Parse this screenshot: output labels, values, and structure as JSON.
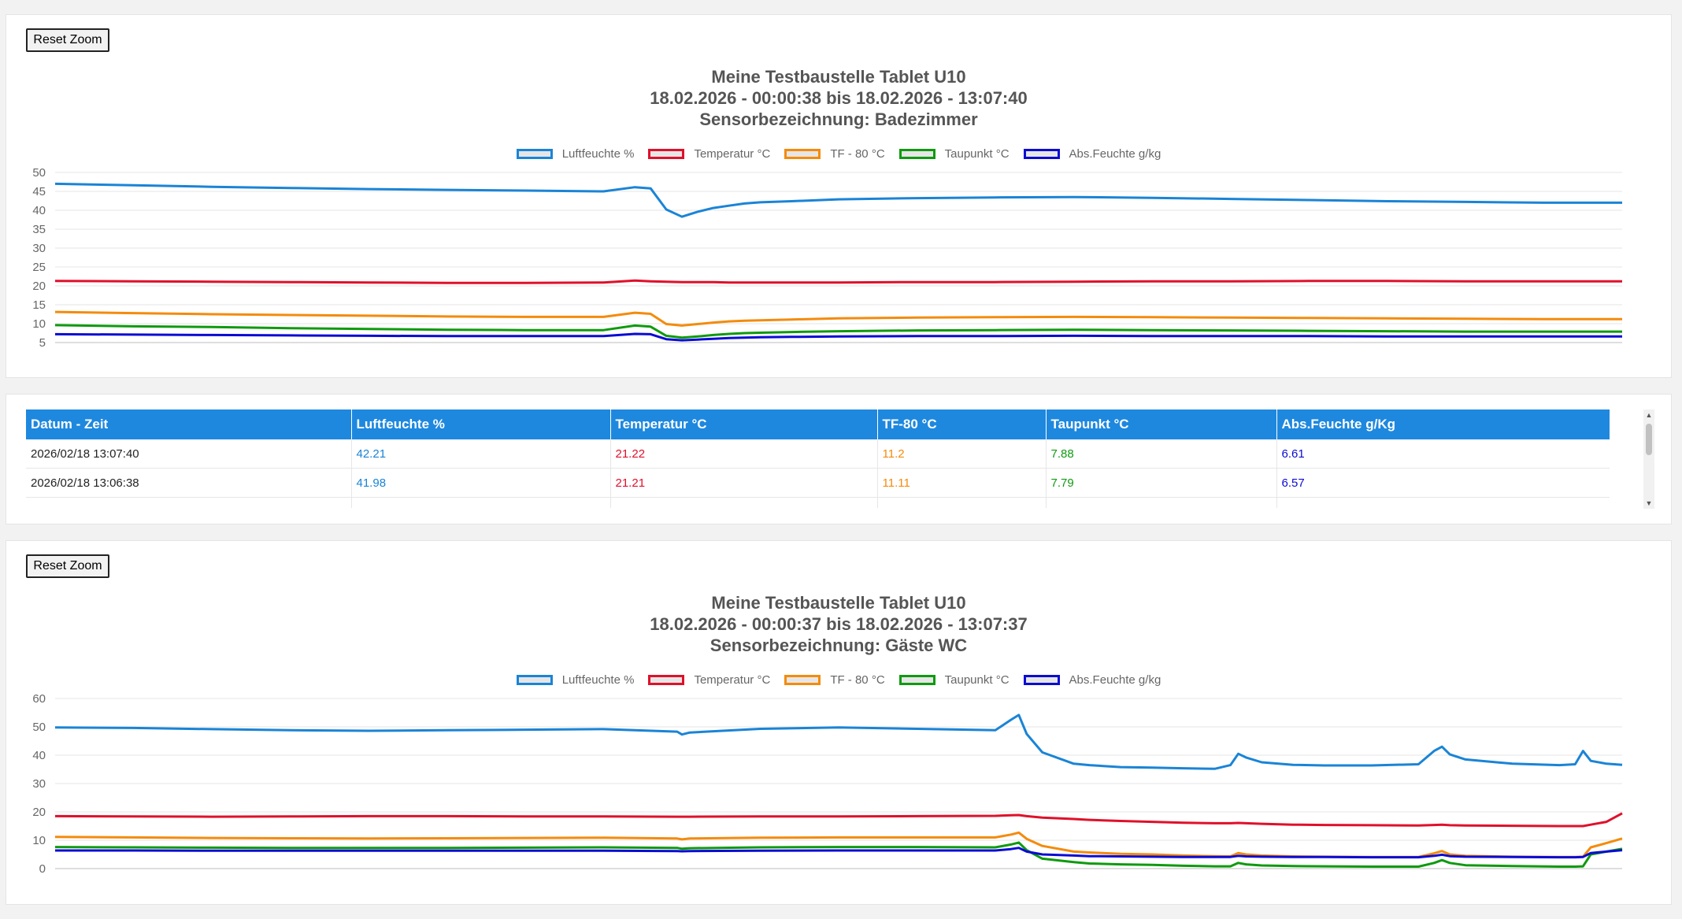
{
  "reset_label": "Reset Zoom",
  "legend": [
    {
      "label": "Luftfeuchte %",
      "color": "#1a84d6"
    },
    {
      "label": "Temperatur °C",
      "color": "#e0102a"
    },
    {
      "label": "TF - 80 °C",
      "color": "#f48b0c"
    },
    {
      "label": "Taupunkt °C",
      "color": "#0f9a0f"
    },
    {
      "label": "Abs.Feuchte g/kg",
      "color": "#0b0bd4"
    }
  ],
  "chart1": {
    "title_lines": [
      "Meine Testbaustelle Tablet U10",
      "18.02.2026 - 00:00:38 bis 18.02.2026 - 13:07:40",
      "Sensorbezeichnung: Badezimmer"
    ]
  },
  "chart2": {
    "title_lines": [
      "Meine Testbaustelle Tablet U10",
      "18.02.2026 - 00:00:37 bis 18.02.2026 - 13:07:37",
      "Sensorbezeichnung: Gäste WC"
    ]
  },
  "table": {
    "headers": [
      "Datum - Zeit",
      "Luftfeuchte %",
      "Temperatur °C",
      "TF-80 °C",
      "Taupunkt °C",
      "Abs.Feuchte g/Kg"
    ],
    "rows": [
      [
        "2026/02/18 13:07:40",
        "42.21",
        "21.22",
        "11.2",
        "7.88",
        "6.61"
      ],
      [
        "2026/02/18 13:06:38",
        "41.98",
        "21.21",
        "11.11",
        "7.79",
        "6.57"
      ]
    ]
  },
  "chart_data": [
    {
      "type": "line",
      "title": "Meine Testbaustelle Tablet U10 / 18.02.2026 - 00:00:38 bis 18.02.2026 - 13:07:40 / Sensorbezeichnung: Badezimmer",
      "ylim": [
        5,
        50
      ],
      "yticks": [
        50,
        45,
        40,
        35,
        30,
        25,
        20,
        15,
        10,
        5
      ],
      "x": [
        0,
        5,
        10,
        15,
        20,
        25,
        30,
        35,
        37,
        38,
        39,
        40,
        41,
        42,
        43,
        44,
        45,
        47,
        50,
        55,
        60,
        65,
        70,
        75,
        80,
        85,
        90,
        95,
        100
      ],
      "series": [
        {
          "name": "Luftfeuchte %",
          "values": [
            47,
            46.6,
            46.2,
            45.9,
            45.6,
            45.4,
            45.2,
            45,
            46.1,
            45.8,
            40.2,
            38.3,
            39.6,
            40.6,
            41.2,
            41.8,
            42.1,
            42.4,
            42.9,
            43.2,
            43.4,
            43.5,
            43.3,
            43,
            42.7,
            42.4,
            42.2,
            42,
            42
          ]
        },
        {
          "name": "Temperatur °C",
          "values": [
            21.3,
            21.2,
            21.1,
            21.0,
            20.9,
            20.8,
            20.8,
            20.9,
            21.4,
            21.2,
            21.1,
            21.0,
            21.0,
            21.0,
            20.9,
            20.9,
            20.9,
            20.9,
            20.9,
            21.0,
            21.0,
            21.1,
            21.2,
            21.2,
            21.3,
            21.3,
            21.2,
            21.2,
            21.2
          ]
        },
        {
          "name": "TF - 80 °C",
          "values": [
            13.1,
            12.8,
            12.5,
            12.3,
            12.1,
            11.9,
            11.8,
            11.8,
            12.9,
            12.6,
            9.9,
            9.5,
            9.9,
            10.3,
            10.6,
            10.8,
            10.9,
            11.1,
            11.4,
            11.6,
            11.7,
            11.8,
            11.7,
            11.6,
            11.5,
            11.4,
            11.3,
            11.2,
            11.2
          ]
        },
        {
          "name": "Taupunkt °C",
          "values": [
            9.6,
            9.3,
            9.1,
            8.8,
            8.6,
            8.4,
            8.3,
            8.3,
            9.5,
            9.2,
            6.8,
            6.3,
            6.6,
            7.0,
            7.3,
            7.5,
            7.6,
            7.8,
            8.0,
            8.2,
            8.3,
            8.4,
            8.3,
            8.2,
            8.1,
            8.0,
            7.9,
            7.9,
            7.9
          ]
        },
        {
          "name": "Abs.Feuchte g/kg",
          "values": [
            7.2,
            7.1,
            7.0,
            6.9,
            6.8,
            6.7,
            6.7,
            6.7,
            7.3,
            7.2,
            5.9,
            5.6,
            5.8,
            6.0,
            6.2,
            6.3,
            6.4,
            6.5,
            6.6,
            6.7,
            6.7,
            6.8,
            6.7,
            6.7,
            6.7,
            6.6,
            6.6,
            6.6,
            6.6
          ]
        }
      ]
    },
    {
      "type": "line",
      "title": "Meine Testbaustelle Tablet U10 / 18.02.2026 - 00:00:37 bis 18.02.2026 - 13:07:37 / Sensorbezeichnung: Gäste WC",
      "ylim": [
        0,
        60
      ],
      "yticks": [
        60,
        50,
        40,
        30,
        20,
        10,
        0
      ],
      "x": [
        0,
        5,
        10,
        15,
        20,
        25,
        30,
        35,
        39.7,
        40,
        40.5,
        45,
        50,
        55,
        60,
        61,
        61.5,
        62,
        63,
        65,
        66,
        68,
        70,
        72,
        74,
        75,
        75.5,
        76,
        77,
        79,
        81,
        84,
        87,
        88,
        88.5,
        89,
        90,
        93,
        96,
        97,
        97.5,
        98,
        99,
        100
      ],
      "series": [
        {
          "name": "Luftfeuchte %",
          "values": [
            49.8,
            49.6,
            49.2,
            48.8,
            48.6,
            48.8,
            49.0,
            49.2,
            48.3,
            47.3,
            48.0,
            49.3,
            49.8,
            49.3,
            48.8,
            52.5,
            54.2,
            47.5,
            41.0,
            37.0,
            36.5,
            35.8,
            35.6,
            35.4,
            35.2,
            36.5,
            40.5,
            39.2,
            37.5,
            36.6,
            36.4,
            36.4,
            36.8,
            41.5,
            43.0,
            40.3,
            38.5,
            37.0,
            36.5,
            36.8,
            41.5,
            38.0,
            37.0,
            36.6
          ]
        },
        {
          "name": "Temperatur °C",
          "values": [
            18.5,
            18.4,
            18.3,
            18.4,
            18.5,
            18.5,
            18.4,
            18.4,
            18.3,
            18.3,
            18.3,
            18.4,
            18.4,
            18.5,
            18.6,
            18.8,
            18.9,
            18.5,
            18.0,
            17.5,
            17.2,
            16.8,
            16.5,
            16.2,
            16.0,
            16.0,
            16.1,
            16.0,
            15.8,
            15.5,
            15.4,
            15.3,
            15.2,
            15.4,
            15.5,
            15.3,
            15.2,
            15.1,
            15.0,
            15.0,
            15.0,
            15.5,
            16.5,
            19.5
          ]
        },
        {
          "name": "TF - 80 °C",
          "values": [
            11.2,
            11.0,
            10.8,
            10.7,
            10.6,
            10.7,
            10.8,
            10.9,
            10.6,
            10.3,
            10.6,
            10.9,
            11.0,
            11.0,
            11.0,
            12.0,
            12.7,
            10.5,
            8.0,
            6.0,
            5.7,
            5.2,
            5.0,
            4.6,
            4.4,
            4.3,
            5.5,
            5.0,
            4.6,
            4.3,
            4.2,
            4.1,
            4.1,
            5.4,
            6.2,
            5.0,
            4.5,
            4.2,
            4.1,
            4.1,
            4.2,
            7.5,
            9.0,
            10.6
          ]
        },
        {
          "name": "Taupunkt °C",
          "values": [
            7.6,
            7.5,
            7.4,
            7.3,
            7.3,
            7.3,
            7.4,
            7.5,
            7.3,
            7.0,
            7.2,
            7.5,
            7.6,
            7.6,
            7.5,
            8.5,
            9.2,
            6.5,
            3.5,
            2.3,
            1.8,
            1.5,
            1.3,
            1.0,
            0.8,
            0.8,
            2.0,
            1.5,
            1.1,
            0.9,
            0.8,
            0.7,
            0.7,
            2.0,
            3.0,
            2.0,
            1.2,
            0.9,
            0.7,
            0.7,
            0.8,
            5.0,
            6.0,
            7.0
          ]
        },
        {
          "name": "Abs.Feuchte g/kg",
          "values": [
            6.4,
            6.4,
            6.3,
            6.3,
            6.3,
            6.3,
            6.3,
            6.3,
            6.2,
            6.1,
            6.2,
            6.3,
            6.4,
            6.4,
            6.4,
            6.9,
            7.3,
            6.0,
            5.0,
            4.6,
            4.4,
            4.3,
            4.2,
            4.1,
            4.1,
            4.1,
            4.5,
            4.3,
            4.2,
            4.1,
            4.1,
            4.0,
            4.0,
            4.5,
            4.9,
            4.4,
            4.2,
            4.1,
            4.0,
            4.0,
            4.1,
            5.5,
            6.0,
            6.5
          ]
        }
      ]
    }
  ]
}
